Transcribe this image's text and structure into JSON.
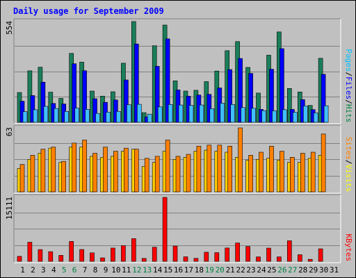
{
  "chart_data": {
    "type": "bar",
    "title": "Daily usage for September 2009",
    "days": [
      "1",
      "2",
      "3",
      "4",
      "5",
      "6",
      "7",
      "8",
      "9",
      "10",
      "11",
      "12",
      "13",
      "14",
      "15",
      "16",
      "17",
      "18",
      "19",
      "20",
      "21",
      "22",
      "23",
      "24",
      "25",
      "26",
      "27",
      "28",
      "29",
      "30",
      "31"
    ],
    "weekend_days": [
      "5",
      "6",
      "12",
      "13",
      "19",
      "20",
      "26",
      "27"
    ],
    "panels": [
      {
        "max_label": "554",
        "ymax": 554,
        "legend": [
          {
            "label": "Pages",
            "color": "#00C0FF"
          },
          {
            "label": "/",
            "color": "#000000"
          },
          {
            "label": "Files",
            "color": "#0000FF"
          },
          {
            "label": "/",
            "color": "#000000"
          },
          {
            "label": "Hits",
            "color": "#008040"
          }
        ],
        "series": [
          {
            "name": "Hits",
            "color": "#1a7f5a",
            "values": [
              164,
              283,
              303,
              166,
              132,
              379,
              331,
              172,
              144,
              168,
              325,
              554,
              53,
              421,
              535,
              228,
              172,
              176,
              224,
              282,
              394,
              444,
              302,
              161,
              369,
              497,
              186,
              167,
              93,
              352,
              0
            ]
          },
          {
            "name": "Files",
            "color": "#0000ff",
            "values": [
              116,
              147,
              221,
              104,
              101,
              322,
              284,
              130,
              110,
              123,
              233,
              431,
              30,
              308,
              459,
              178,
              144,
              150,
              154,
              189,
              290,
              351,
              269,
              71,
              292,
              405,
              71,
              125,
              70,
              264,
              0
            ]
          },
          {
            "name": "Pages",
            "color": "#40c0ff",
            "values": [
              59,
              69,
              88,
              76,
              60,
              78,
              71,
              49,
              56,
              60,
              97,
              99,
              45,
              85,
              98,
              95,
              93,
              95,
              75,
              105,
              98,
              81,
              77,
              64,
              63,
              69,
              55,
              90,
              52,
              91,
              0
            ]
          }
        ]
      },
      {
        "max_label": "63",
        "ymax": 63,
        "legend": [
          {
            "label": "Sites",
            "color": "#FF8000"
          },
          {
            "label": "/",
            "color": "#000000"
          },
          {
            "label": "Visits",
            "color": "#FFFF00"
          }
        ],
        "series": [
          {
            "name": "Visits",
            "color": "#ffd000",
            "values": [
              23,
              32,
              38,
              43,
              29,
              44,
              44,
              35,
              34,
              35,
              40,
              42,
              25,
              29,
              40,
              32,
              34,
              40,
              41,
              40,
              39,
              34,
              31,
              32,
              33,
              31,
              29,
              29,
              33,
              36,
              0
            ]
          },
          {
            "name": "Sites",
            "color": "#ff8000",
            "values": [
              27,
              36,
              42,
              44,
              30,
              48,
              51,
              38,
              44,
              40,
              43,
              42,
              33,
              35,
              51,
              35,
              37,
              45,
              46,
              46,
              45,
              63,
              36,
              39,
              45,
              40,
              34,
              38,
              39,
              57,
              0
            ]
          }
        ]
      },
      {
        "max_label": "15111",
        "ymax": 15111,
        "legend": [
          {
            "label": "KBytes",
            "color": "#FF0000"
          }
        ],
        "series": [
          {
            "name": "KBytes",
            "color": "#ff0000",
            "values": [
              1175,
              4513,
              2774,
              2283,
              1416,
              4695,
              2795,
              2002,
              823,
              3137,
              3710,
              5378,
              691,
              3341,
              15111,
              3618,
              1070,
              711,
              2153,
              2055,
              3149,
              4332,
              3523,
              1054,
              3114,
              1054,
              4861,
              1565,
              482,
              2955,
              0
            ]
          }
        ]
      }
    ]
  }
}
